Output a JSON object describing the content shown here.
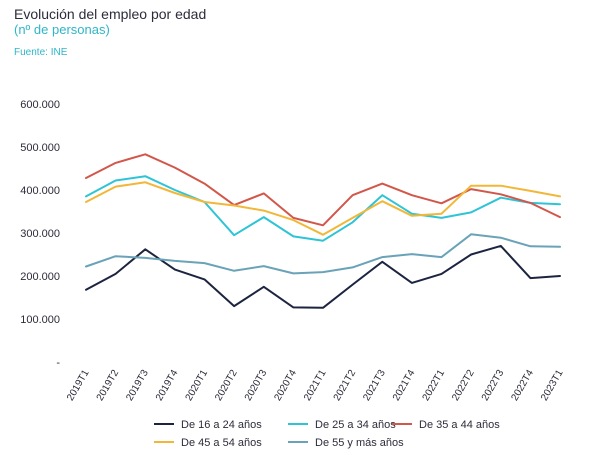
{
  "header": {
    "title": "Evolución del empleo por edad",
    "subtitle": "(nº de personas)",
    "source": "Fuente: INE"
  },
  "chart_data": {
    "type": "line",
    "title": "Evolución del empleo por edad",
    "subtitle": "(nº de personas)",
    "xlabel": "",
    "ylabel": "",
    "ylim": [
      0,
      600000
    ],
    "yticks": [
      0,
      100000,
      200000,
      300000,
      400000,
      500000,
      600000
    ],
    "ytick_labels": [
      "-",
      "100.000",
      "200.000",
      "300.000",
      "400.000",
      "500.000",
      "600.000"
    ],
    "grid": false,
    "legend_position": "bottom",
    "categories": [
      "2019T1",
      "2019T2",
      "2019T3",
      "2019T4",
      "2020T1",
      "2020T2",
      "2020T3",
      "2020T4",
      "2021T1",
      "2021T2",
      "2021T3",
      "2021T4",
      "2022T1",
      "2022T2",
      "2022T3",
      "2022T4",
      "2023T1"
    ],
    "series": [
      {
        "name": "De 16 a 24 años",
        "color": "#1c2440",
        "values": [
          168000,
          205000,
          262000,
          215000,
          192000,
          130000,
          175000,
          127000,
          126000,
          180000,
          233000,
          184000,
          205000,
          250000,
          270000,
          195000,
          200000
        ]
      },
      {
        "name": "De 25 a 34 años",
        "color": "#2ec4d6",
        "values": [
          385000,
          422000,
          432000,
          400000,
          372000,
          295000,
          337000,
          292000,
          282000,
          325000,
          388000,
          345000,
          335000,
          348000,
          382000,
          370000,
          367000
        ]
      },
      {
        "name": "De 35 a 44 años",
        "color": "#d2574a",
        "values": [
          428000,
          463000,
          483000,
          452000,
          415000,
          365000,
          392000,
          335000,
          318000,
          388000,
          415000,
          388000,
          369000,
          402000,
          390000,
          370000,
          337000
        ]
      },
      {
        "name": "De 45 a 54 años",
        "color": "#f2b738",
        "values": [
          372000,
          408000,
          418000,
          393000,
          372000,
          364000,
          352000,
          330000,
          296000,
          335000,
          374000,
          340000,
          345000,
          410000,
          410000,
          398000,
          385000
        ]
      },
      {
        "name": "De 55 y más años",
        "color": "#6aa3b8",
        "values": [
          222000,
          246000,
          242000,
          235000,
          230000,
          212000,
          223000,
          206000,
          209000,
          220000,
          244000,
          251000,
          244000,
          297000,
          289000,
          269000,
          268000
        ]
      }
    ]
  }
}
